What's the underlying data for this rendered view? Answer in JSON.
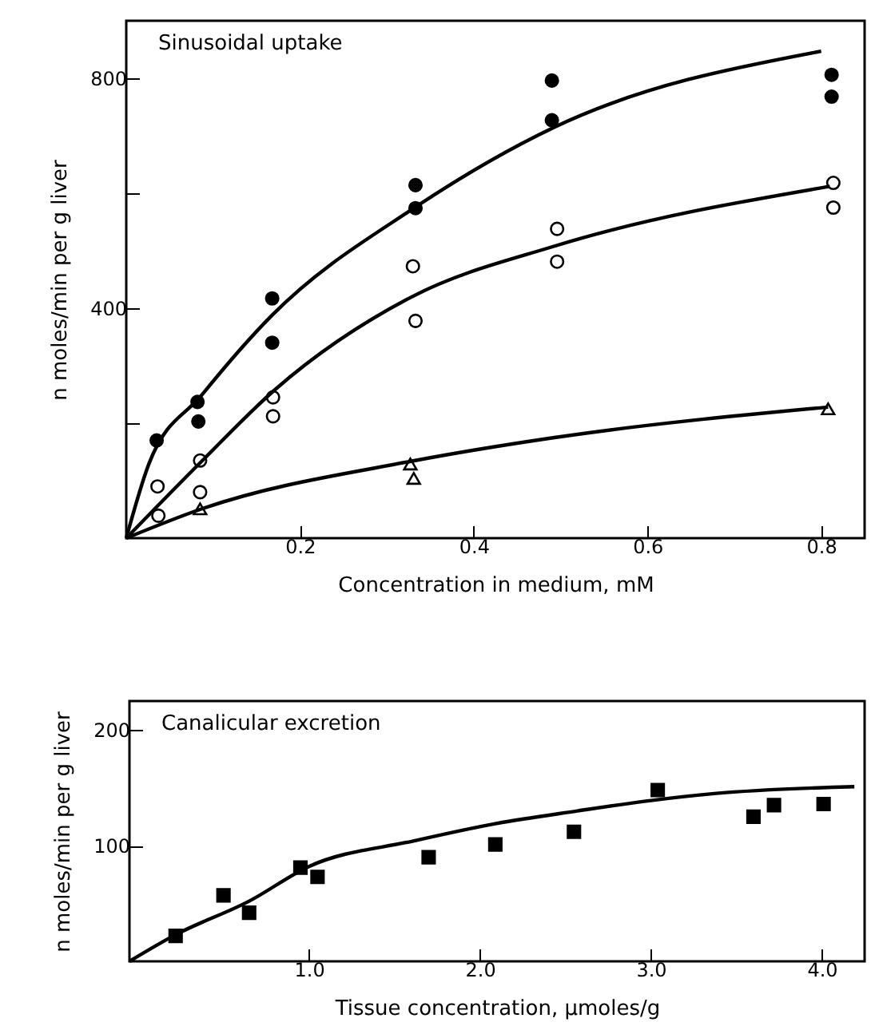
{
  "chart_data": [
    {
      "type": "scatter",
      "title": "Sinusoidal uptake",
      "xlabel": "Concentration in medium, mM",
      "ylabel": "n moles/min per g liver",
      "xlim": [
        0,
        0.85
      ],
      "ylim": [
        0,
        900
      ],
      "xticks": [
        0.2,
        0.4,
        0.6,
        0.8
      ],
      "yticks": [
        {
          "value": 200,
          "label": null
        },
        400,
        {
          "value": 600,
          "label": null
        },
        800
      ],
      "grid": false,
      "series": [
        {
          "type": "scatter",
          "color": "#000000",
          "marker": "circle",
          "x": [
            0.035,
            0.082,
            0.083,
            0.168,
            0.168,
            0.333,
            0.333,
            0.49,
            0.49,
            0.812,
            0.812
          ],
          "values": [
            170,
            237,
            203,
            417,
            340,
            614,
            574,
            796,
            727,
            806,
            768
          ]
        },
        {
          "type": "scatter",
          "color": "#ffffff",
          "marker": "circle",
          "x": [
            0.036,
            0.037,
            0.085,
            0.085,
            0.169,
            0.169,
            0.33,
            0.333,
            0.496,
            0.496,
            0.814,
            0.814
          ],
          "values": [
            90,
            39,
            135,
            80,
            245,
            212,
            473,
            378,
            538,
            481,
            618,
            575
          ]
        },
        {
          "type": "scatter",
          "color": "#ffffff",
          "marker": "triangle",
          "x": [
            0.085,
            0.327,
            0.331,
            0.808
          ],
          "values": [
            51,
            129,
            104,
            225
          ]
        },
        {
          "type": "line",
          "color": "#000000",
          "marker": "none",
          "x": [
            0,
            0.026,
            0.087,
            0.168,
            0.329,
            0.493,
            0.8
          ],
          "values": [
            0,
            129,
            249,
            388,
            572,
            715,
            847
          ]
        },
        {
          "type": "line",
          "color": "#000000",
          "marker": "none",
          "x": [
            0,
            0.087,
            0.171,
            0.329,
            0.493,
            0.81
          ],
          "values": [
            0,
            134,
            258,
            420,
            508,
            612
          ]
        },
        {
          "type": "line",
          "color": "#000000",
          "marker": "none",
          "x": [
            0,
            0.087,
            0.329,
            0.493,
            0.808
          ],
          "values": [
            0,
            51,
            134,
            175,
            228
          ]
        }
      ]
    },
    {
      "type": "scatter",
      "title": "Canalicular excretion",
      "xlabel": "Tissue concentration, µmoles/g",
      "ylabel": "n moles/min per g liver",
      "xlim": [
        -0.05,
        4.25
      ],
      "ylim": [
        0,
        225
      ],
      "xticks": [
        {
          "value": 1,
          "label": "1.0"
        },
        {
          "value": 2,
          "label": "2.0"
        },
        {
          "value": 3,
          "label": "3.0"
        },
        {
          "value": 4,
          "label": "4.0"
        }
      ],
      "yticks": [
        100,
        200
      ],
      "grid": false,
      "series": [
        {
          "type": "scatter",
          "color": "#000000",
          "marker": "square",
          "x": [
            0.22,
            0.5,
            0.65,
            0.95,
            1.05,
            1.7,
            2.09,
            2.55,
            3.04,
            3.6,
            3.72,
            4.01
          ],
          "values": [
            22,
            57,
            42,
            81,
            73,
            90,
            101,
            112,
            148,
            125,
            135,
            136
          ]
        },
        {
          "type": "line",
          "color": "#000000",
          "marker": "none",
          "x": [
            -0.05,
            0.22,
            0.65,
            1.0,
            1.61,
            2.09,
            2.57,
            3.0,
            3.37,
            4.19
          ],
          "values": [
            0,
            23,
            52,
            82,
            104,
            119,
            130,
            139,
            145,
            151
          ]
        }
      ]
    }
  ]
}
